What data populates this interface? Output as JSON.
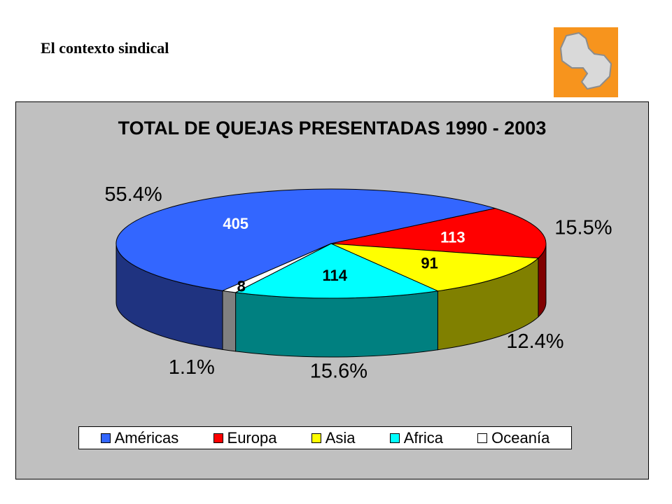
{
  "slide": {
    "title": "El contexto sindical"
  },
  "logo": {
    "icon": "paraguay-map-logo-icon",
    "bg_color": "#f7941d"
  },
  "chart_data": {
    "type": "pie",
    "style": "3d",
    "title": "TOTAL DE QUEJAS PRESENTADAS 1990 - 2003",
    "legend_position": "bottom",
    "slices": [
      {
        "name": "Américas",
        "value": 405,
        "percent_label": "55.4%",
        "color": "#3366ff",
        "side_color": "#1f3380",
        "label_color": "#ffffff"
      },
      {
        "name": "Europa",
        "value": 113,
        "percent_label": "15.5%",
        "color": "#ff0000",
        "side_color": "#800000",
        "label_color": "#ffffff"
      },
      {
        "name": "Asia",
        "value": 91,
        "percent_label": "12.4%",
        "color": "#ffff00",
        "side_color": "#808000",
        "label_color": "#000000"
      },
      {
        "name": "Africa",
        "value": 114,
        "percent_label": "15.6%",
        "color": "#00ffff",
        "side_color": "#008080",
        "label_color": "#000000"
      },
      {
        "name": "Oceanía",
        "value": 8,
        "percent_label": "1.1%",
        "color": "#ffffff",
        "side_color": "#808080",
        "label_color": "#000000"
      }
    ]
  }
}
